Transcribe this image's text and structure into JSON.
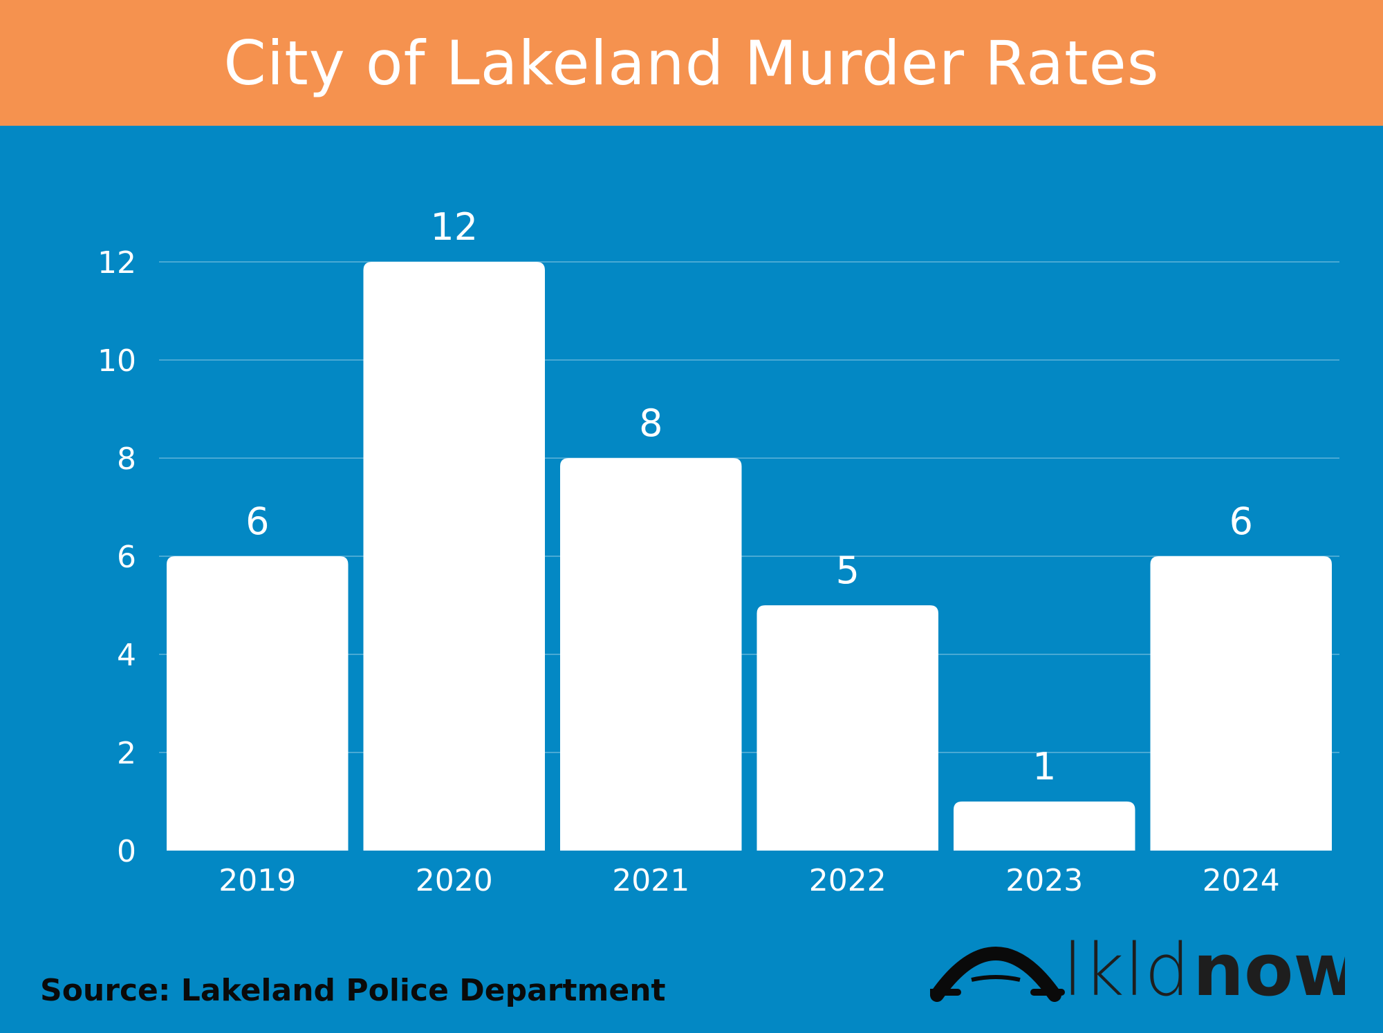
{
  "header": {
    "title": "City of Lakeland Murder Rates"
  },
  "chart_data": {
    "type": "bar",
    "categories": [
      "2019",
      "2020",
      "2021",
      "2022",
      "2023",
      "2024"
    ],
    "values": [
      6,
      12,
      8,
      5,
      1,
      6
    ],
    "ylim": [
      0,
      12
    ],
    "yticks": [
      0,
      2,
      4,
      6,
      8,
      10,
      12
    ],
    "grid": true,
    "data_labels": true
  },
  "footer": {
    "source": "Source: Lakeland Police Department"
  },
  "logo": {
    "text_light": "lkld",
    "text_bold": "now",
    "icon": "bridge-arch-icon"
  },
  "colors": {
    "header_bg": "#f5924f",
    "chart_bg": "#0388c4",
    "bar": "#ffffff",
    "text": "#ffffff"
  }
}
